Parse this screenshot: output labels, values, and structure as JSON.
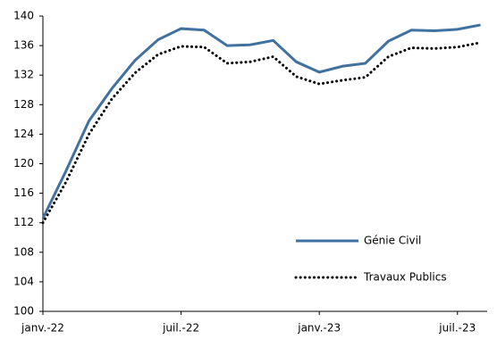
{
  "chart_data": {
    "type": "line",
    "categories": [
      "janv.-22",
      null,
      null,
      null,
      null,
      null,
      "juil.-22",
      null,
      null,
      null,
      null,
      null,
      "janv.-23",
      null,
      null,
      null,
      null,
      null,
      "juil.-23",
      null
    ],
    "series": [
      {
        "name": "Génie Civil",
        "color": "#41719f",
        "style": "solid",
        "values": [
          112.6,
          119,
          125.8,
          130.2,
          134,
          136.8,
          138.3,
          138.1,
          136,
          136.1,
          136.7,
          133.8,
          132.4,
          133.2,
          133.6,
          136.6,
          138.1,
          138,
          138.2,
          138.8
        ]
      },
      {
        "name": "Travaux Publics",
        "color": "#000000",
        "style": "dotted",
        "values": [
          112,
          117.5,
          124,
          128.8,
          132.3,
          134.8,
          135.9,
          135.8,
          133.6,
          133.8,
          134.5,
          131.8,
          130.8,
          131.3,
          131.7,
          134.5,
          135.7,
          135.6,
          135.8,
          136.4
        ]
      }
    ],
    "ylim": [
      100,
      140
    ],
    "yticks": [
      100,
      104,
      108,
      112,
      116,
      120,
      124,
      128,
      132,
      136,
      140
    ],
    "grid": false,
    "legend": "lower-right"
  }
}
